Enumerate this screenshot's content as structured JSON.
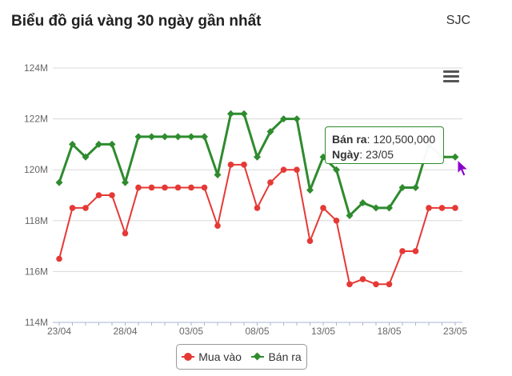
{
  "header": {
    "title": "Biểu đồ giá vàng 30 ngày gần nhất",
    "brand": "SJC"
  },
  "tooltip": {
    "sell_label": "Bán ra",
    "sell_value": ": 120,500,000",
    "date_label": "Ngày",
    "date_value": ": 23/05"
  },
  "colors": {
    "buy": "#e53935",
    "sell": "#2e8b2e",
    "grid": "#d8d8d8",
    "cursor": "#8b00c8"
  },
  "icons": {
    "menu": "hamburger-menu-icon",
    "cursor": "mouse-pointer-icon"
  },
  "chart_data": {
    "type": "line",
    "title": "Biểu đồ giá vàng 30 ngày gần nhất",
    "y_ticks": [
      "114M",
      "116M",
      "118M",
      "120M",
      "122M",
      "124M"
    ],
    "ylim": [
      114,
      124
    ],
    "y_unit": "M",
    "x_tick_labels": [
      "23/04",
      "28/04",
      "03/05",
      "08/05",
      "13/05",
      "18/05",
      "23/05"
    ],
    "legend": "bottom-center",
    "grid": true,
    "series": [
      {
        "name": "Mua vào",
        "values": [
          116.5,
          118.5,
          118.5,
          119.0,
          119.0,
          117.5,
          119.3,
          119.3,
          119.3,
          119.3,
          119.3,
          119.3,
          117.8,
          120.2,
          120.2,
          118.5,
          119.5,
          120.0,
          120.0,
          117.2,
          118.5,
          118.0,
          115.5,
          115.7,
          115.5,
          115.5,
          116.8,
          116.8,
          118.5,
          118.5,
          118.5
        ]
      },
      {
        "name": "Bán ra",
        "values": [
          119.5,
          121.0,
          120.5,
          121.0,
          121.0,
          119.5,
          121.3,
          121.3,
          121.3,
          121.3,
          121.3,
          121.3,
          119.8,
          122.2,
          122.2,
          120.5,
          121.5,
          122.0,
          122.0,
          119.2,
          120.5,
          120.0,
          118.2,
          118.7,
          118.5,
          118.5,
          119.3,
          119.3,
          121.0,
          120.5,
          120.5
        ]
      }
    ]
  }
}
